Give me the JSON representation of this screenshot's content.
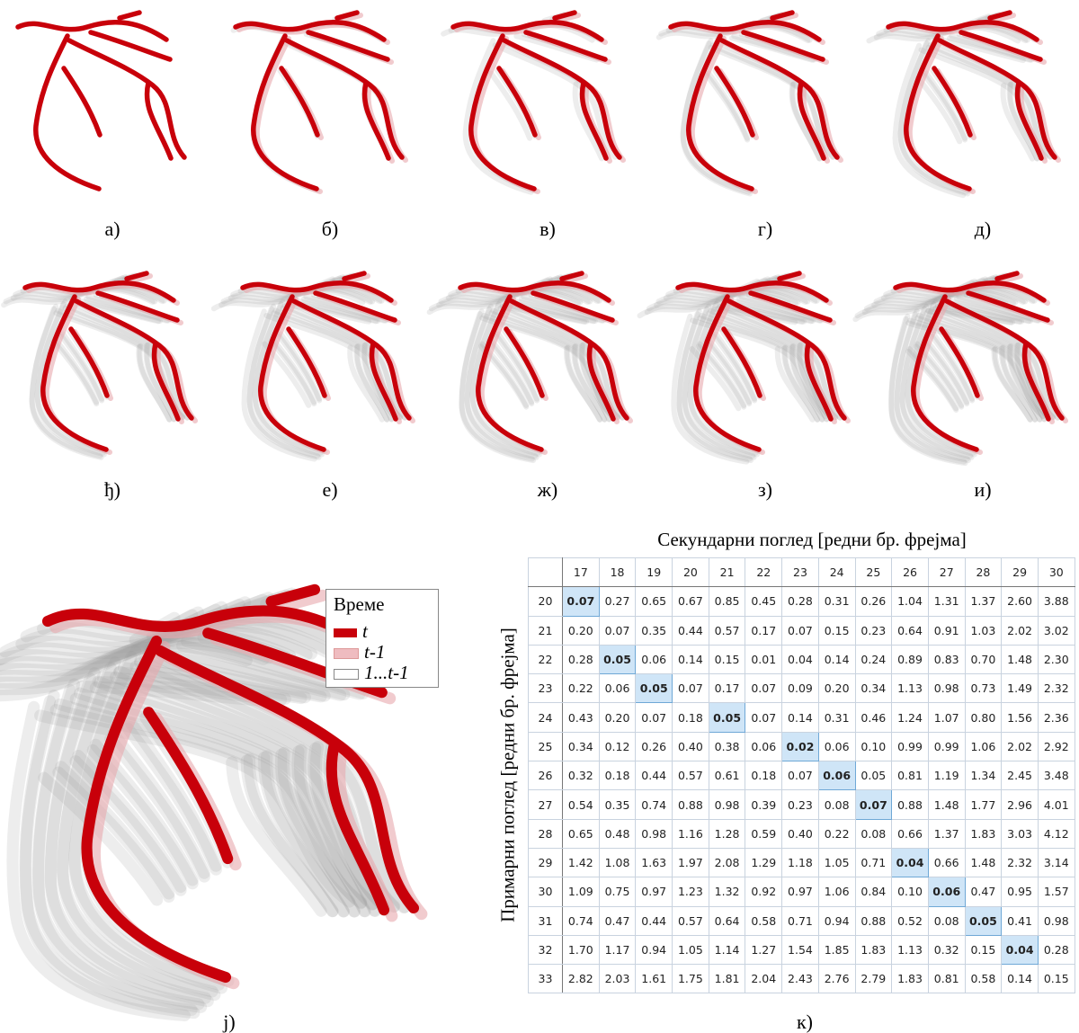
{
  "panels": [
    {
      "caption": "а)"
    },
    {
      "caption": "б)"
    },
    {
      "caption": "в)"
    },
    {
      "caption": "г)"
    },
    {
      "caption": "д)"
    },
    {
      "caption": "ђ)"
    },
    {
      "caption": "е)"
    },
    {
      "caption": "ж)"
    },
    {
      "caption": "з)"
    },
    {
      "caption": "и)"
    }
  ],
  "large_panel": {
    "caption": "j)",
    "legend": {
      "title": "Време",
      "items": [
        "t",
        "t-1",
        "1...t-1"
      ]
    }
  },
  "table": {
    "caption": "к)",
    "title": "Секундарни поглед [редни бр. фрејма]",
    "row_axis_label": "Примарни поглед [редни бр. фрејма]",
    "columns": [
      "17",
      "18",
      "19",
      "20",
      "21",
      "22",
      "23",
      "24",
      "25",
      "26",
      "27",
      "28",
      "29",
      "30"
    ],
    "rows": [
      {
        "label": "20",
        "cells": [
          "0.07",
          "0.27",
          "0.65",
          "0.67",
          "0.85",
          "0.45",
          "0.28",
          "0.31",
          "0.26",
          "1.04",
          "1.31",
          "1.37",
          "2.60",
          "3.88"
        ]
      },
      {
        "label": "21",
        "cells": [
          "0.20",
          "0.07",
          "0.35",
          "0.44",
          "0.57",
          "0.17",
          "0.07",
          "0.15",
          "0.23",
          "0.64",
          "0.91",
          "1.03",
          "2.02",
          "3.02"
        ]
      },
      {
        "label": "22",
        "cells": [
          "0.28",
          "0.05",
          "0.06",
          "0.14",
          "0.15",
          "0.01",
          "0.04",
          "0.14",
          "0.24",
          "0.89",
          "0.83",
          "0.70",
          "1.48",
          "2.30"
        ]
      },
      {
        "label": "23",
        "cells": [
          "0.22",
          "0.06",
          "0.05",
          "0.07",
          "0.17",
          "0.07",
          "0.09",
          "0.20",
          "0.34",
          "1.13",
          "0.98",
          "0.73",
          "1.49",
          "2.32"
        ]
      },
      {
        "label": "24",
        "cells": [
          "0.43",
          "0.20",
          "0.07",
          "0.18",
          "0.05",
          "0.07",
          "0.14",
          "0.31",
          "0.46",
          "1.24",
          "1.07",
          "0.80",
          "1.56",
          "2.36"
        ]
      },
      {
        "label": "25",
        "cells": [
          "0.34",
          "0.12",
          "0.26",
          "0.40",
          "0.38",
          "0.06",
          "0.02",
          "0.06",
          "0.10",
          "0.99",
          "0.99",
          "1.06",
          "2.02",
          "2.92"
        ]
      },
      {
        "label": "26",
        "cells": [
          "0.32",
          "0.18",
          "0.44",
          "0.57",
          "0.61",
          "0.18",
          "0.07",
          "0.06",
          "0.05",
          "0.81",
          "1.19",
          "1.34",
          "2.45",
          "3.48"
        ]
      },
      {
        "label": "27",
        "cells": [
          "0.54",
          "0.35",
          "0.74",
          "0.88",
          "0.98",
          "0.39",
          "0.23",
          "0.08",
          "0.07",
          "0.88",
          "1.48",
          "1.77",
          "2.96",
          "4.01"
        ]
      },
      {
        "label": "28",
        "cells": [
          "0.65",
          "0.48",
          "0.98",
          "1.16",
          "1.28",
          "0.59",
          "0.40",
          "0.22",
          "0.08",
          "0.66",
          "1.37",
          "1.83",
          "3.03",
          "4.12"
        ]
      },
      {
        "label": "29",
        "cells": [
          "1.42",
          "1.08",
          "1.63",
          "1.97",
          "2.08",
          "1.29",
          "1.18",
          "1.05",
          "0.71",
          "0.04",
          "0.66",
          "1.48",
          "2.32",
          "3.14"
        ]
      },
      {
        "label": "30",
        "cells": [
          "1.09",
          "0.75",
          "0.97",
          "1.23",
          "1.32",
          "0.92",
          "0.97",
          "1.06",
          "0.84",
          "0.10",
          "0.06",
          "0.47",
          "0.95",
          "1.57"
        ]
      },
      {
        "label": "31",
        "cells": [
          "0.74",
          "0.47",
          "0.44",
          "0.57",
          "0.64",
          "0.58",
          "0.71",
          "0.94",
          "0.88",
          "0.52",
          "0.08",
          "0.05",
          "0.41",
          "0.98"
        ]
      },
      {
        "label": "32",
        "cells": [
          "1.70",
          "1.17",
          "0.94",
          "1.05",
          "1.14",
          "1.27",
          "1.54",
          "1.85",
          "1.83",
          "1.13",
          "0.32",
          "0.15",
          "0.04",
          "0.28"
        ]
      },
      {
        "label": "33",
        "cells": [
          "2.82",
          "2.03",
          "1.61",
          "1.75",
          "1.81",
          "2.04",
          "2.43",
          "2.76",
          "2.79",
          "1.83",
          "0.81",
          "0.58",
          "0.14",
          "0.15"
        ]
      }
    ],
    "highlight": [
      [
        0,
        0
      ],
      [
        2,
        1
      ],
      [
        3,
        2
      ],
      [
        4,
        4
      ],
      [
        5,
        6
      ],
      [
        6,
        7
      ],
      [
        7,
        8
      ],
      [
        9,
        9
      ],
      [
        10,
        10
      ],
      [
        11,
        11
      ],
      [
        12,
        12
      ]
    ]
  }
}
